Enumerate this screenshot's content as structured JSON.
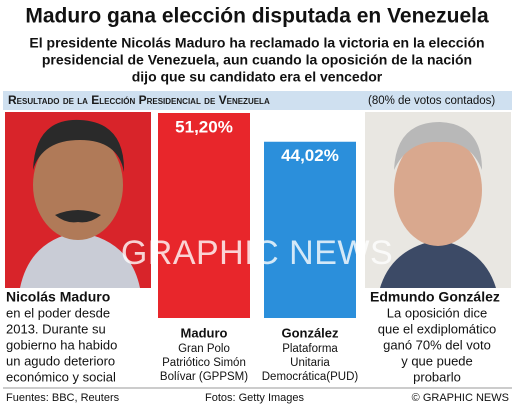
{
  "title": "Maduro gana elección disputada en Venezuela",
  "subtitle": [
    "El presidente Nicolás Maduro ha reclamado la victoria en la elección",
    "presidencial de Venezuela, aun cuando la oposición de la nación",
    "dijo que su candidato era el vencedor"
  ],
  "chart_data": {
    "type": "bar",
    "title": "Resultado de la Elección Presidencial de Venezuela",
    "note": "(80% de votos contados)",
    "categories": [
      "Maduro",
      "González"
    ],
    "category_details": [
      [
        "Gran Polo",
        "Patriótico Simón",
        "Bolívar (GPPSM)"
      ],
      [
        "Plataforma",
        "Unitaria",
        "Democrática(PUD)"
      ]
    ],
    "values": [
      51.2,
      44.02
    ],
    "value_labels": [
      "51,20%",
      "44,02%"
    ],
    "colors": [
      "#e8262b",
      "#2b8fdb"
    ]
  },
  "candidates": [
    {
      "name": "Nicolás Maduro",
      "description": [
        "en el poder desde",
        "2013. Durante su",
        "gobierno ha habido",
        "un agudo deterioro",
        "económico y social"
      ]
    },
    {
      "name": "Edmundo González",
      "description": [
        "La oposición dice",
        "que el exdiplomático",
        "ganó 70% del voto",
        "y que puede",
        "probarlo"
      ]
    }
  ],
  "watermark": "GRAPHIC NEWS",
  "footer": {
    "sources": "Fuentes: BBC, Reuters",
    "photos": "Fotos: Getty Images",
    "credit": "© GRAPHIC NEWS"
  }
}
